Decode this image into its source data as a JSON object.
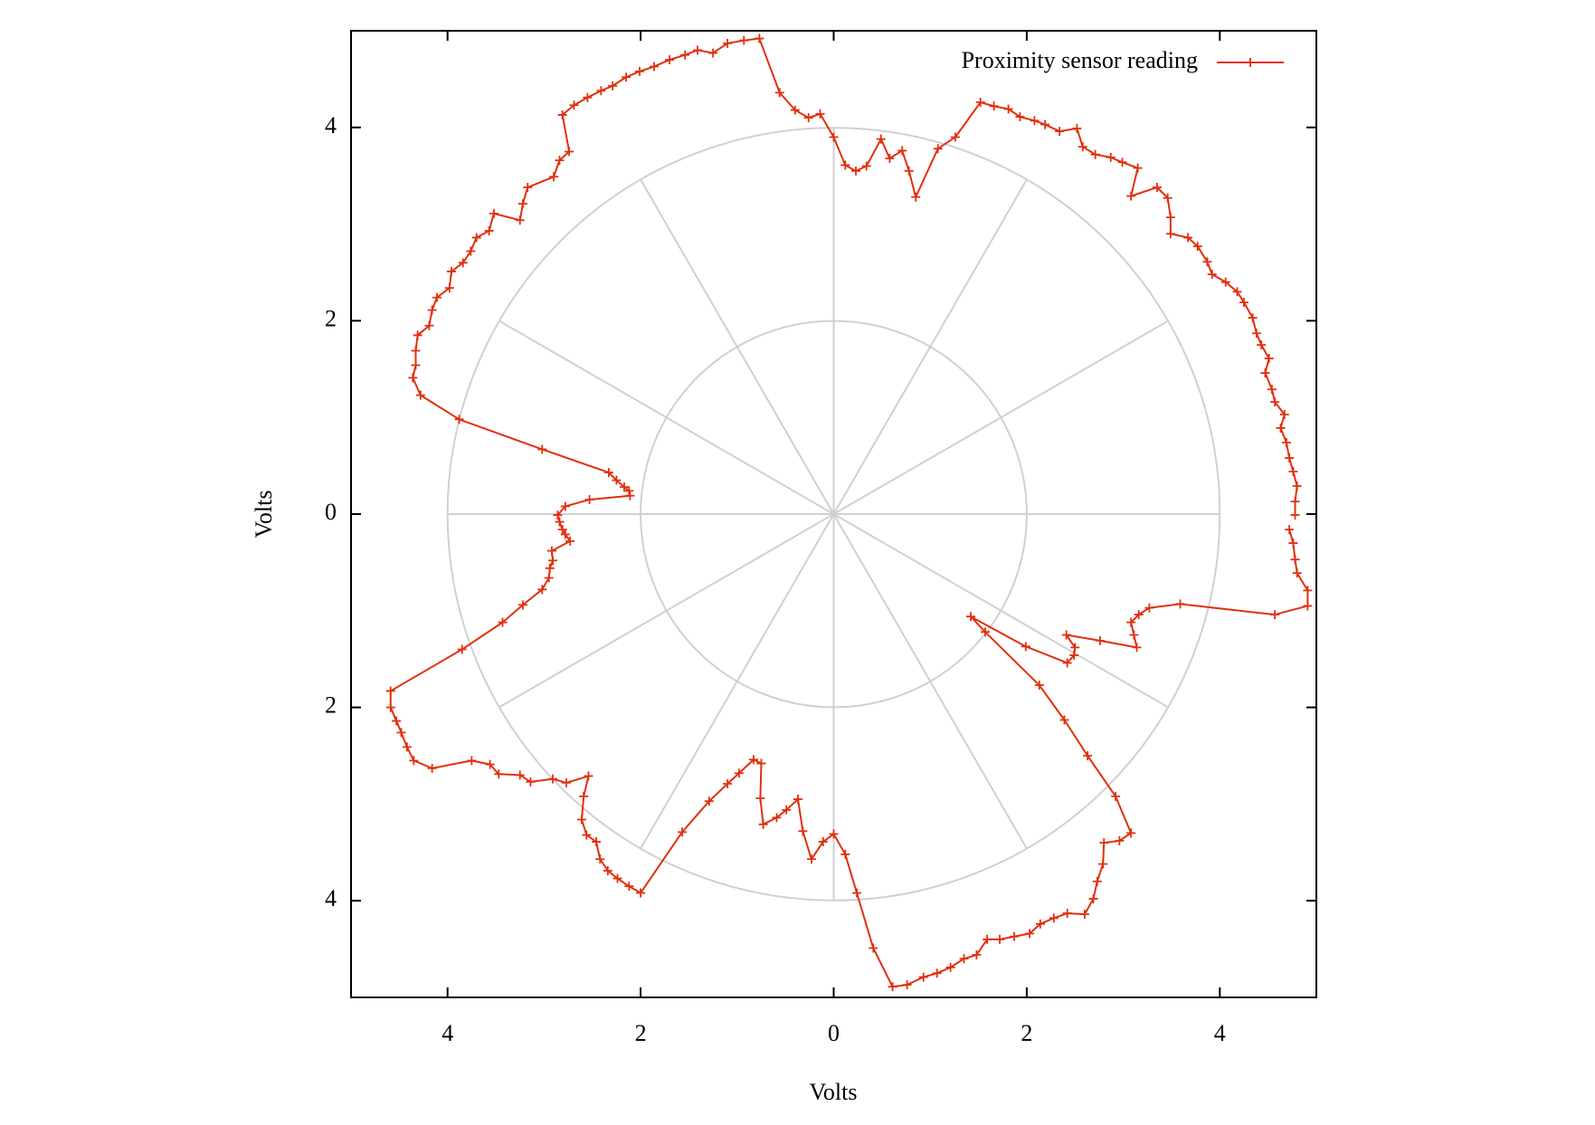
{
  "chart_data": {
    "type": "line",
    "xlabel": "Volts",
    "ylabel": "Volts",
    "xlim": [
      -5,
      5
    ],
    "ylim": [
      -5,
      5
    ],
    "xticks": [
      {
        "value": -4,
        "label": "4"
      },
      {
        "value": -2,
        "label": "2"
      },
      0,
      2,
      4
    ],
    "yticks": [
      {
        "value": -4,
        "label": "4"
      },
      {
        "value": -2,
        "label": "2"
      },
      0,
      2,
      4
    ],
    "polar_grid": true,
    "grid_angle_step": 30,
    "legend": "top right",
    "series": [
      {
        "name": "Proximity sensor reading",
        "color": "#e0300f",
        "x": [
          4.78,
          4.78,
          4.8,
          4.76,
          4.72,
          4.69,
          4.63,
          4.67,
          4.57,
          4.54,
          4.47,
          4.51,
          4.43,
          4.38,
          4.34,
          4.25,
          4.18,
          4.06,
          3.92,
          3.87,
          3.77,
          3.67,
          3.49,
          3.49,
          3.46,
          3.35,
          3.08,
          3.15,
          2.99,
          2.87,
          2.71,
          2.58,
          2.52,
          2.34,
          2.19,
          2.08,
          1.93,
          1.81,
          1.66,
          1.52,
          1.26,
          1.08,
          0.85,
          0.78,
          0.71,
          0.58,
          0.49,
          0.34,
          0.23,
          0.12,
          0.0,
          -0.14,
          -0.26,
          -0.4,
          -0.56,
          -0.77,
          -0.93,
          -1.1,
          -1.25,
          -1.41,
          -1.54,
          -1.7,
          -1.86,
          -2.01,
          -2.15,
          -2.29,
          -2.41,
          -2.55,
          -2.69,
          -2.81,
          -2.74,
          -2.84,
          -2.9,
          -3.17,
          -3.22,
          -3.25,
          -3.52,
          -3.57,
          -3.7,
          -3.76,
          -3.84,
          -3.96,
          -3.98,
          -4.11,
          -4.16,
          -4.19,
          -4.31,
          -4.33,
          -4.33,
          -4.36,
          -4.28,
          -3.88,
          -3.02,
          -2.33,
          -2.25,
          -2.17,
          -2.12,
          -2.11,
          -2.53,
          -2.78,
          -2.86,
          -2.84,
          -2.81,
          -2.78,
          -2.73,
          -2.92,
          -2.91,
          -2.94,
          -2.95,
          -3.02,
          -3.22,
          -3.43,
          -3.85,
          -4.59,
          -4.59,
          -4.53,
          -4.48,
          -4.42,
          -4.35,
          -4.16,
          -3.75,
          -3.56,
          -3.47,
          -3.25,
          -3.14,
          -2.91,
          -2.77,
          -2.54,
          -2.59,
          -2.61,
          -2.56,
          -2.46,
          -2.42,
          -2.34,
          -2.24,
          -2.12,
          -2.0,
          -1.57,
          -1.29,
          -1.1,
          -0.98,
          -0.83,
          -0.75,
          -0.76,
          -0.73,
          -0.59,
          -0.49,
          -0.37,
          -0.32,
          -0.23,
          -0.11,
          0.0,
          0.12,
          0.24,
          0.41,
          0.61,
          0.76,
          0.93,
          1.07,
          1.21,
          1.35,
          1.48,
          1.59,
          1.72,
          1.87,
          2.03,
          2.14,
          2.28,
          2.42,
          2.6,
          2.69,
          2.73,
          2.79,
          2.8,
          2.96,
          3.08,
          2.92,
          2.63,
          2.39,
          2.13,
          1.57,
          1.42,
          1.99,
          2.42,
          2.49,
          2.5,
          2.41,
          2.76,
          3.14,
          3.11,
          3.08,
          3.16,
          3.27,
          3.59,
          4.57,
          4.91,
          4.91,
          4.8,
          4.78,
          4.76,
          4.72
        ],
        "y": [
          -0.01,
          0.13,
          0.29,
          0.44,
          0.58,
          0.74,
          0.89,
          1.03,
          1.16,
          1.29,
          1.46,
          1.61,
          1.75,
          1.87,
          2.03,
          2.19,
          2.3,
          2.4,
          2.48,
          2.61,
          2.77,
          2.86,
          2.9,
          3.07,
          3.27,
          3.38,
          3.29,
          3.58,
          3.64,
          3.69,
          3.72,
          3.8,
          3.99,
          3.96,
          4.03,
          4.07,
          4.11,
          4.19,
          4.22,
          4.26,
          3.9,
          3.78,
          3.28,
          3.55,
          3.76,
          3.68,
          3.88,
          3.6,
          3.55,
          3.61,
          3.9,
          4.14,
          4.1,
          4.18,
          4.36,
          4.92,
          4.9,
          4.87,
          4.77,
          4.8,
          4.75,
          4.7,
          4.63,
          4.58,
          4.52,
          4.43,
          4.38,
          4.31,
          4.23,
          4.13,
          3.75,
          3.66,
          3.49,
          3.38,
          3.21,
          3.04,
          3.11,
          2.93,
          2.86,
          2.72,
          2.6,
          2.51,
          2.34,
          2.24,
          2.11,
          1.95,
          1.85,
          1.69,
          1.54,
          1.41,
          1.23,
          0.98,
          0.67,
          0.43,
          0.35,
          0.28,
          0.24,
          0.19,
          0.15,
          0.08,
          -0.01,
          -0.08,
          -0.16,
          -0.21,
          -0.28,
          -0.38,
          -0.48,
          -0.56,
          -0.66,
          -0.78,
          -0.94,
          -1.12,
          -1.4,
          -1.83,
          -2.0,
          -2.14,
          -2.26,
          -2.41,
          -2.55,
          -2.63,
          -2.55,
          -2.59,
          -2.69,
          -2.7,
          -2.77,
          -2.74,
          -2.78,
          -2.71,
          -2.92,
          -3.16,
          -3.32,
          -3.39,
          -3.57,
          -3.69,
          -3.77,
          -3.85,
          -3.92,
          -3.29,
          -2.97,
          -2.79,
          -2.68,
          -2.54,
          -2.58,
          -2.94,
          -3.21,
          -3.14,
          -3.06,
          -2.95,
          -3.28,
          -3.57,
          -3.39,
          -3.31,
          -3.52,
          -3.92,
          -4.49,
          -4.89,
          -4.87,
          -4.79,
          -4.75,
          -4.69,
          -4.6,
          -4.56,
          -4.4,
          -4.4,
          -4.37,
          -4.34,
          -4.24,
          -4.18,
          -4.13,
          -4.14,
          -3.98,
          -3.8,
          -3.62,
          -3.4,
          -3.38,
          -3.3,
          -2.92,
          -2.5,
          -2.13,
          -1.77,
          -1.22,
          -1.06,
          -1.37,
          -1.54,
          -1.46,
          -1.38,
          -1.25,
          -1.31,
          -1.38,
          -1.25,
          -1.12,
          -1.04,
          -0.97,
          -0.93,
          -1.04,
          -0.95,
          -0.79,
          -0.61,
          -0.47,
          -0.3,
          -0.16
        ]
      }
    ]
  }
}
